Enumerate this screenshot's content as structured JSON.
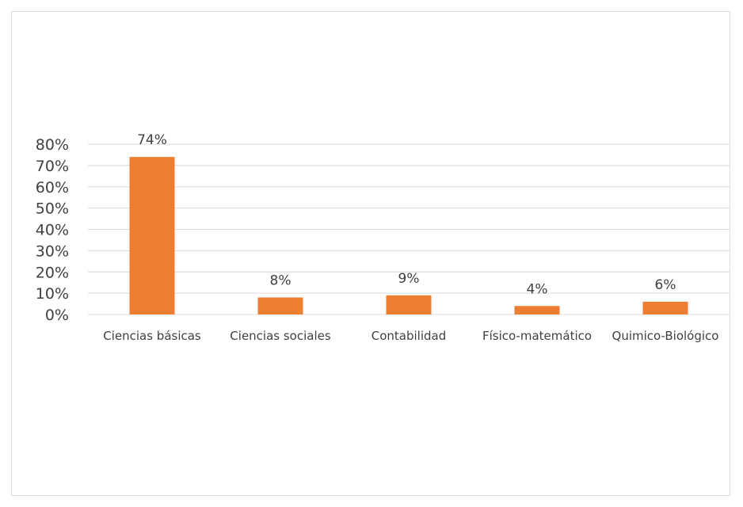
{
  "chart_data": {
    "type": "bar",
    "title": "",
    "xlabel": "",
    "ylabel": "",
    "categories": [
      "Ciencias básicas",
      "Ciencias sociales",
      "Contabilidad",
      "Físico-matemático",
      "Quimico-Biológico"
    ],
    "values": [
      74,
      8,
      9,
      4,
      6
    ],
    "data_labels": [
      "74%",
      "8%",
      "9%",
      "4%",
      "6%"
    ],
    "ylim": [
      0,
      80
    ],
    "yticks": [
      0,
      10,
      20,
      30,
      40,
      50,
      60,
      70,
      80
    ],
    "ytick_labels": [
      "0%",
      "10%",
      "20%",
      "30%",
      "40%",
      "50%",
      "60%",
      "70%",
      "80%"
    ],
    "grid": true,
    "legend": "none",
    "bar_color": "#ED7D31",
    "grid_color": "#D9D9D9",
    "text_color": "#404040"
  }
}
